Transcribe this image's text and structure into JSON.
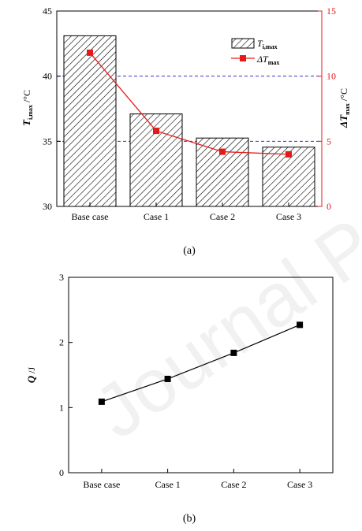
{
  "watermark": "Journal Pre-proof",
  "chart_data": [
    {
      "type": "bar",
      "caption": "(a)",
      "categories": [
        "Base case",
        "Case 1",
        "Case 2",
        "Case 3"
      ],
      "series": [
        {
          "name": "T_i,max",
          "axis": "left",
          "style": "hatched-bar",
          "values": [
            43.1,
            37.1,
            35.25,
            34.55
          ]
        },
        {
          "name": "ΔT_max",
          "axis": "right",
          "style": "red-line-square",
          "values": [
            11.8,
            5.8,
            4.2,
            4.0
          ]
        }
      ],
      "ylim": [
        30,
        45
      ],
      "yticks": [
        "30",
        "35",
        "40",
        "45"
      ],
      "y2lim": [
        0,
        15
      ],
      "y2ticks": [
        "0",
        "5",
        "10",
        "15"
      ],
      "ylabel": {
        "main": "T",
        "sub": "i,max",
        "unit": " /°C"
      },
      "y2label": {
        "main": "ΔT",
        "sub": "max",
        "unit": " /°C"
      },
      "legend": {
        "entry1": {
          "main": "T",
          "sub": "i,max"
        },
        "entry2": {
          "main": "ΔT",
          "sub": "max"
        },
        "placement": "top-right"
      },
      "reference_lines": [
        35,
        40
      ],
      "colors": {
        "line": "#e41a1a",
        "refline": "#3333cc"
      }
    },
    {
      "type": "line",
      "caption": "(b)",
      "categories": [
        "Base case",
        "Case 1",
        "Case 2",
        "Case 3"
      ],
      "values": [
        1.09,
        1.44,
        1.84,
        2.27
      ],
      "ylim": [
        0,
        3
      ],
      "yticks": [
        "0",
        "1",
        "2",
        "3"
      ],
      "ylabel": {
        "main": "Q",
        "unit": " /J"
      }
    }
  ]
}
